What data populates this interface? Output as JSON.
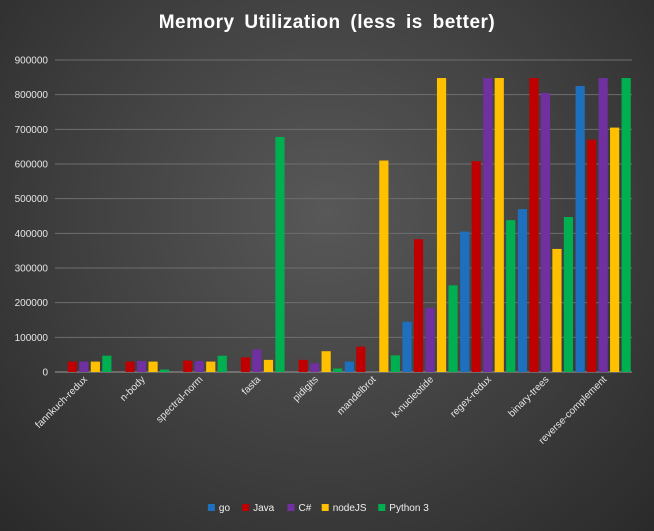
{
  "chart_data": {
    "type": "bar",
    "title": "Memory  Utilization  (less is better)",
    "xlabel": "",
    "ylabel": "",
    "ylim": [
      0,
      900000
    ],
    "y_ticks": [
      "0",
      "100000",
      "200000",
      "300000",
      "400000",
      "500000",
      "600000",
      "700000",
      "800000",
      "900000"
    ],
    "grid": true,
    "legend_position": "bottom",
    "categories": [
      "fannkuch-redux",
      "n-body",
      "spectral-norm",
      "fasta",
      "pidigits",
      "mandelbrot",
      "k-nucleotide",
      "regex-redux",
      "binary-trees",
      "reverse-complement"
    ],
    "series": [
      {
        "name": "go",
        "color": "#1f6fbf",
        "values": [
          0,
          0,
          0,
          0,
          0,
          30000,
          145000,
          405000,
          470000,
          825000
        ]
      },
      {
        "name": "Java",
        "color": "#c00000",
        "values": [
          30000,
          30000,
          33000,
          42000,
          35000,
          73000,
          383000,
          608000,
          848000,
          670000
        ]
      },
      {
        "name": "C#",
        "color": "#7030a0",
        "values": [
          30000,
          32000,
          32000,
          65000,
          25000,
          0,
          185000,
          848000,
          805000,
          848000
        ]
      },
      {
        "name": "nodeJS",
        "color": "#ffc000",
        "values": [
          30000,
          30000,
          30000,
          35000,
          60000,
          610000,
          848000,
          848000,
          355000,
          705000
        ]
      },
      {
        "name": "Python 3",
        "color": "#00b050",
        "values": [
          47000,
          7000,
          47000,
          678000,
          10000,
          48000,
          250000,
          438000,
          447000,
          848000
        ]
      }
    ]
  }
}
